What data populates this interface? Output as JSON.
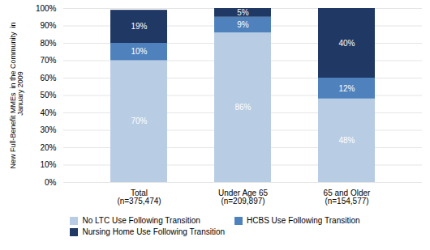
{
  "chart_data": {
    "type": "bar",
    "stacked": true,
    "categories": [
      "Total\n(n=375,474)",
      "Under Age 65\n(n=209,897)",
      "65 and Older\n(n=154,577)"
    ],
    "series": [
      {
        "name": "No LTC Use Following Transition",
        "color": "#b8cce4",
        "values": [
          70,
          86,
          48
        ],
        "value_labels": [
          "70%",
          "86%",
          "48%"
        ]
      },
      {
        "name": "HCBS Use Following Transition",
        "color": "#4f81bd",
        "values": [
          10,
          9,
          12
        ],
        "value_labels": [
          "10%",
          "9%",
          "12%"
        ]
      },
      {
        "name": "Nursing Home Use Following Transition",
        "color": "#1f3864",
        "values": [
          19,
          5,
          40
        ],
        "value_labels": [
          "19%",
          "5%",
          "40%"
        ]
      }
    ],
    "ylabel": "New Full-Benefit MMEs  in the Community  in\n  January 2009",
    "ylim": [
      0,
      100
    ],
    "yticks": [
      {
        "value": 0,
        "label": "0%"
      },
      {
        "value": 10,
        "label": "10%"
      },
      {
        "value": 20,
        "label": "20%"
      },
      {
        "value": 30,
        "label": "30%"
      },
      {
        "value": 40,
        "label": "40%"
      },
      {
        "value": 50,
        "label": "50%"
      },
      {
        "value": 60,
        "label": "60%"
      },
      {
        "value": 70,
        "label": "70%"
      },
      {
        "value": 80,
        "label": "80%"
      },
      {
        "value": 90,
        "label": "90%"
      },
      {
        "value": 100,
        "label": "100%"
      }
    ],
    "grid": true,
    "legend": "bottom",
    "data_labels": true
  }
}
